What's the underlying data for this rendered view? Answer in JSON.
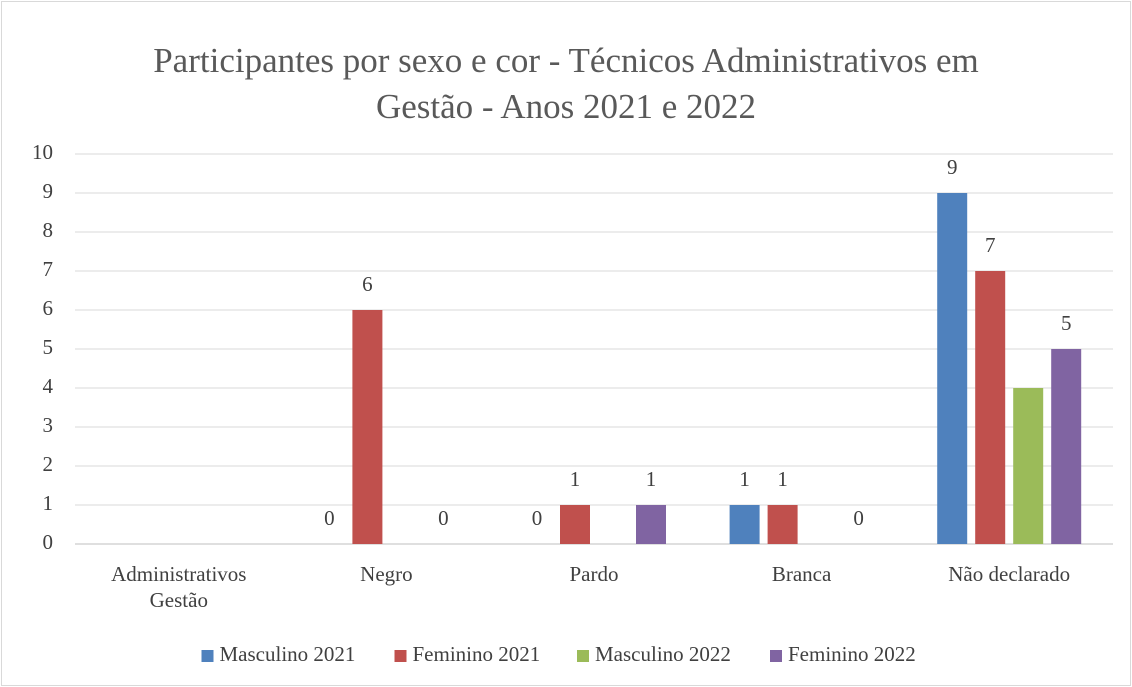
{
  "chart_data": {
    "type": "bar",
    "title": "Participantes por sexo e cor - Técnicos Administrativos em Gestão - Anos 2021 e 2022",
    "categories": [
      "Administrativos Gestão",
      "Negro",
      "Pardo",
      "Branca",
      "Não declarado"
    ],
    "series": [
      {
        "name": "Masculino 2021",
        "color": "#4f81bd",
        "values": [
          null,
          0,
          0,
          1,
          9
        ],
        "data_labels": true
      },
      {
        "name": "Feminino 2021",
        "color": "#c0504d",
        "values": [
          null,
          6,
          1,
          1,
          7
        ],
        "data_labels": true
      },
      {
        "name": "Masculino 2022",
        "color": "#9bbb59",
        "values": [
          null,
          null,
          null,
          null,
          4
        ],
        "data_labels": false
      },
      {
        "name": "Feminino 2022",
        "color": "#8064a2",
        "values": [
          null,
          0,
          1,
          0,
          5
        ],
        "data_labels": true
      }
    ],
    "ylim": [
      0,
      10
    ],
    "yticks": [
      0,
      1,
      2,
      3,
      4,
      5,
      6,
      7,
      8,
      9,
      10
    ],
    "grid": true,
    "legend": "bottom"
  }
}
